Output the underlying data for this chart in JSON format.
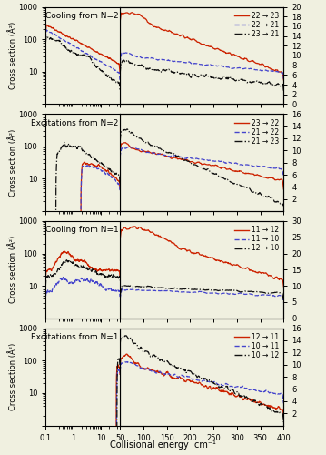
{
  "panels": [
    {
      "title": "Cooling from N=2",
      "legend_labels": [
        "22 → 23",
        "22 → 21",
        "23 → 21"
      ],
      "legend_styles": [
        {
          "color": "#cc2200",
          "linestyle": "-"
        },
        {
          "color": "#4444cc",
          "linestyle": "--"
        },
        {
          "color": "#111111",
          "linestyle": "-."
        }
      ],
      "yright_max": 20,
      "yright_ticks": [
        0,
        2,
        4,
        6,
        8,
        10,
        12,
        14,
        16,
        18,
        20
      ]
    },
    {
      "title": "Excitations from N=2",
      "legend_labels": [
        "23 → 22",
        "21 → 22",
        "21 → 23"
      ],
      "legend_styles": [
        {
          "color": "#cc2200",
          "linestyle": "-"
        },
        {
          "color": "#4444cc",
          "linestyle": "--"
        },
        {
          "color": "#111111",
          "linestyle": "-."
        }
      ],
      "yright_max": 16,
      "yright_ticks": [
        2,
        4,
        6,
        8,
        10,
        12,
        14,
        16
      ]
    },
    {
      "title": "Cooling from N=1",
      "legend_labels": [
        "11 → 12",
        "11 → 10",
        "12 → 10"
      ],
      "legend_styles": [
        {
          "color": "#cc2200",
          "linestyle": "-"
        },
        {
          "color": "#4444cc",
          "linestyle": "--"
        },
        {
          "color": "#111111",
          "linestyle": "-."
        }
      ],
      "yright_max": 30,
      "yright_ticks": [
        0,
        5,
        10,
        15,
        20,
        25,
        30
      ]
    },
    {
      "title": "Excitations from N=1",
      "legend_labels": [
        "12 → 11",
        "10 → 11",
        "10 → 12"
      ],
      "legend_styles": [
        {
          "color": "#cc2200",
          "linestyle": "-"
        },
        {
          "color": "#4444cc",
          "linestyle": "--"
        },
        {
          "color": "#111111",
          "linestyle": "-."
        }
      ],
      "yright_max": 16,
      "yright_ticks": [
        2,
        4,
        6,
        8,
        10,
        12,
        14,
        16
      ]
    }
  ],
  "ylim_log": [
    1,
    1000
  ],
  "xlabel": "Collisional energy  cm⁻¹",
  "ylabel": "Cross section (Å²)",
  "log_xlim": [
    0.1,
    50
  ],
  "lin_xlim": [
    50,
    400
  ],
  "background": "#f0f0e0"
}
